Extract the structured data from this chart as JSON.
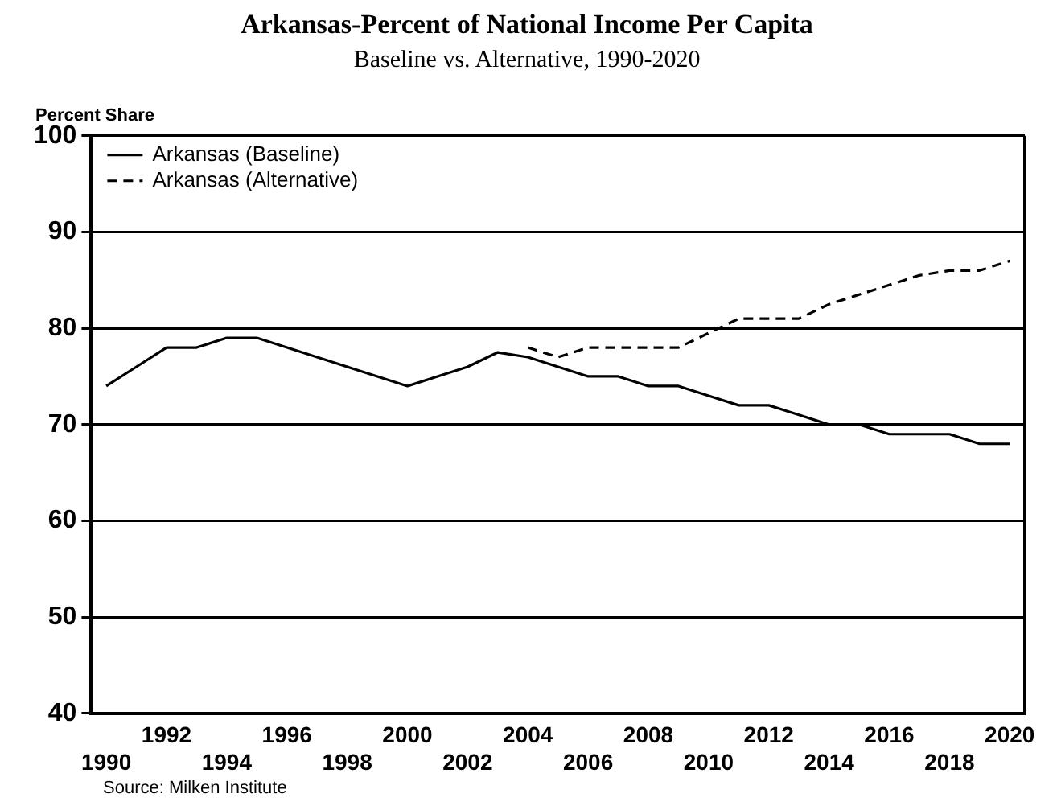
{
  "chart_data": {
    "type": "line",
    "title": "Arkansas-Percent of National Income Per Capita",
    "subtitle": "Baseline vs. Alternative, 1990-2020",
    "ylabel": "Percent Share",
    "categories": [
      "1990",
      null,
      "1992",
      null,
      "1994",
      null,
      "1996",
      null,
      "1998",
      null,
      "2000",
      null,
      "2002",
      null,
      "2004",
      null,
      "2006",
      null,
      "2008",
      null,
      "2010",
      null,
      "2012",
      null,
      "2014",
      null,
      "2016",
      null,
      "2018",
      null,
      "2020"
    ],
    "series": [
      {
        "name": "Arkansas (Baseline)",
        "color": "#000000",
        "line_style": "solid",
        "values": [
          74,
          76,
          78,
          78,
          79,
          79,
          78,
          77,
          76,
          75,
          74,
          75,
          76,
          77.5,
          77,
          76,
          75,
          75,
          74,
          74,
          73,
          72,
          72,
          71,
          70,
          70,
          69,
          69,
          69,
          68,
          68
        ]
      },
      {
        "name": "Arkansas (Alternative)",
        "color": "#000000",
        "line_style": "dashed",
        "values": [
          null,
          null,
          null,
          null,
          null,
          null,
          null,
          null,
          null,
          null,
          null,
          null,
          null,
          null,
          78,
          77,
          78,
          78,
          78,
          78,
          79.5,
          81,
          81,
          81,
          82.5,
          83.5,
          84.5,
          85.5,
          86,
          86,
          87
        ]
      }
    ],
    "ylim": [
      40,
      100
    ],
    "yticks": [
      40,
      50,
      60,
      70,
      80,
      90,
      100
    ],
    "grid": "y",
    "legend": "top left",
    "marker": "none",
    "annotations": [
      "Source: Milken Institute"
    ]
  }
}
